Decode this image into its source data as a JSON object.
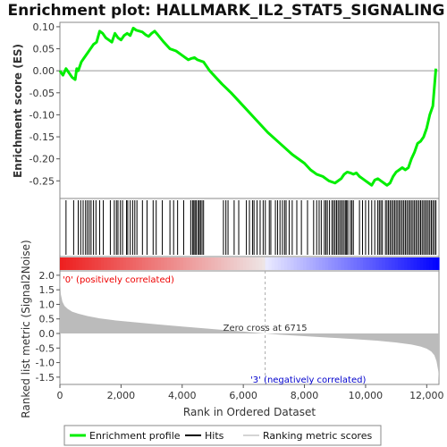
{
  "colors": {
    "enrichment_line": "#00ee00",
    "hit_bar": "#000000",
    "metric_fill": "#bbbbbb",
    "pos_label": "#ee0000",
    "neg_label": "#0000cc",
    "zero_cross_line": "#aaaaaa",
    "ranking_red": "#ee0000",
    "ranking_blue": "#0000ff"
  },
  "chart_data": [
    {
      "type": "line",
      "title": "Enrichment plot: HALLMARK_IL2_STAT5_SIGNALING",
      "ylabel": "Enrichment score (ES)",
      "xlim": [
        0,
        12400
      ],
      "ylim": [
        -0.29,
        0.11
      ],
      "yticks": [
        0.1,
        0.05,
        0.0,
        -0.05,
        -0.1,
        -0.15,
        -0.2,
        -0.25
      ],
      "ytick_labels": [
        "0.10",
        "0.05",
        "0.00",
        "-0.05",
        "-0.10",
        "-0.15",
        "-0.20",
        "-0.25"
      ],
      "series": [
        {
          "name": "Enrichment profile",
          "x": [
            0,
            100,
            200,
            300,
            400,
            500,
            550,
            600,
            700,
            800,
            900,
            1000,
            1100,
            1200,
            1300,
            1400,
            1500,
            1600,
            1700,
            1800,
            1900,
            2000,
            2100,
            2200,
            2300,
            2400,
            2500,
            2600,
            2700,
            2800,
            2900,
            3000,
            3100,
            3200,
            3400,
            3600,
            3800,
            4000,
            4200,
            4300,
            4400,
            4500,
            4700,
            4900,
            5100,
            5300,
            5600,
            6000,
            6400,
            6800,
            7200,
            7600,
            8000,
            8200,
            8400,
            8600,
            8800,
            9000,
            9200,
            9300,
            9400,
            9500,
            9600,
            9700,
            9800,
            9900,
            10000,
            10100,
            10200,
            10300,
            10400,
            10500,
            10600,
            10700,
            10800,
            10900,
            11000,
            11100,
            11200,
            11300,
            11400,
            11500,
            11600,
            11700,
            11800,
            11900,
            12000,
            12100,
            12200,
            12300
          ],
          "values": [
            0.0,
            -0.01,
            0.005,
            -0.005,
            -0.015,
            -0.02,
            0.005,
            0.0,
            0.02,
            0.03,
            0.04,
            0.05,
            0.06,
            0.065,
            0.09,
            0.085,
            0.075,
            0.07,
            0.065,
            0.085,
            0.075,
            0.07,
            0.08,
            0.085,
            0.08,
            0.097,
            0.092,
            0.09,
            0.088,
            0.082,
            0.078,
            0.085,
            0.09,
            0.082,
            0.065,
            0.05,
            0.045,
            0.035,
            0.025,
            0.028,
            0.03,
            0.025,
            0.02,
            0.0,
            -0.015,
            -0.03,
            -0.05,
            -0.08,
            -0.11,
            -0.14,
            -0.165,
            -0.19,
            -0.21,
            -0.225,
            -0.235,
            -0.24,
            -0.25,
            -0.255,
            -0.245,
            -0.235,
            -0.23,
            -0.232,
            -0.235,
            -0.232,
            -0.24,
            -0.245,
            -0.25,
            -0.255,
            -0.26,
            -0.248,
            -0.245,
            -0.25,
            -0.255,
            -0.26,
            -0.255,
            -0.24,
            -0.23,
            -0.225,
            -0.22,
            -0.225,
            -0.22,
            -0.2,
            -0.185,
            -0.165,
            -0.16,
            -0.15,
            -0.13,
            -0.1,
            -0.08,
            0.005
          ]
        }
      ]
    },
    {
      "type": "hits",
      "legend_name": "Hits",
      "xlim": [
        0,
        12400
      ],
      "positions": [
        200,
        450,
        600,
        680,
        760,
        840,
        900,
        960,
        1020,
        1100,
        1180,
        1300,
        1420,
        1650,
        1780,
        1850,
        1900,
        1980,
        2050,
        2180,
        2220,
        2300,
        2380,
        2450,
        2520,
        2700,
        2850,
        3050,
        3150,
        3350,
        3600,
        3720,
        3850,
        4050,
        4280,
        4340,
        4380,
        4420,
        4460,
        4520,
        4560,
        4600,
        4650,
        4700,
        5350,
        5430,
        5500,
        5700,
        5850,
        6100,
        6200,
        6300,
        6350,
        6450,
        6550,
        6650,
        6720,
        6850,
        6900,
        7050,
        7120,
        7200,
        7280,
        7350,
        7400,
        7500,
        7600,
        7750,
        7900,
        8100,
        8300,
        8400,
        8480,
        8550,
        8650,
        8700,
        8750,
        8820,
        8900,
        8950,
        9000,
        9050,
        9100,
        9150,
        9200,
        9250,
        9300,
        9350,
        9380,
        9420,
        9500,
        9550,
        9600,
        9800,
        9900,
        10000,
        10100,
        10200,
        10300,
        10400,
        10450,
        10500,
        10550,
        10650,
        10700,
        10750,
        10800,
        10850,
        10900,
        10950,
        11000,
        11050,
        11100,
        11150,
        11200,
        11250,
        11300,
        11350,
        11400,
        11450,
        11500,
        11550,
        11600,
        11650,
        11700,
        11750,
        11800,
        11850,
        11900,
        11950,
        12000,
        12050,
        12100,
        12150,
        12200,
        12250,
        12300
      ]
    },
    {
      "type": "area",
      "legend_name": "Ranking metric scores",
      "ylabel": "Ranked list metric (Signal2Noise)",
      "xlabel": "Rank in Ordered Dataset",
      "xlim": [
        0,
        12400
      ],
      "ylim": [
        -1.75,
        2.15
      ],
      "xticks": [
        0,
        2000,
        4000,
        6000,
        8000,
        10000,
        12000
      ],
      "xtick_labels": [
        "0",
        "2,000",
        "4,000",
        "6,000",
        "8,000",
        "10,000",
        "12,000"
      ],
      "yticks": [
        2.0,
        1.5,
        1.0,
        0.5,
        0.0,
        -0.5,
        -1.0,
        -1.5
      ],
      "ytick_labels": [
        "2.0",
        "1.5",
        "1.0",
        "0.5",
        "0.0",
        "-0.5",
        "-1.0",
        "-1.5"
      ],
      "x": [
        0,
        30,
        80,
        150,
        250,
        400,
        600,
        900,
        1300,
        1800,
        2500,
        3200,
        4000,
        4800,
        5600,
        6300,
        6715,
        7200,
        8000,
        8800,
        9600,
        10400,
        11000,
        11500,
        11800,
        12000,
        12150,
        12250,
        12320,
        12380,
        12400
      ],
      "values": [
        2.0,
        1.35,
        1.1,
        0.95,
        0.85,
        0.75,
        0.68,
        0.6,
        0.52,
        0.45,
        0.38,
        0.31,
        0.24,
        0.17,
        0.1,
        0.04,
        0.0,
        -0.04,
        -0.09,
        -0.14,
        -0.19,
        -0.25,
        -0.31,
        -0.38,
        -0.45,
        -0.52,
        -0.62,
        -0.75,
        -0.95,
        -1.3,
        -1.62
      ],
      "zero_cross": 6715,
      "annotations": {
        "zero_cross_label": "Zero cross at 6715",
        "pos_label": "'0' (positively correlated)",
        "neg_label": "'3' (negatively correlated)"
      }
    }
  ],
  "legend": {
    "items": [
      {
        "label": "Enrichment profile",
        "key": "enrichment"
      },
      {
        "label": "Hits",
        "key": "hits"
      },
      {
        "label": "Ranking metric scores",
        "key": "ranking"
      }
    ]
  }
}
